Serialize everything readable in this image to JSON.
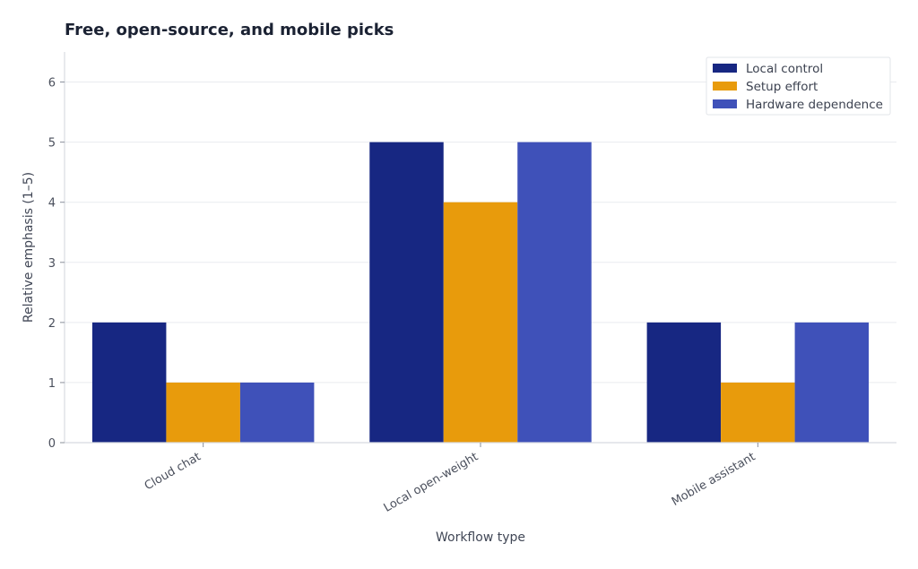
{
  "chart_data": {
    "type": "bar",
    "title": "Free, open-source, and mobile picks",
    "xlabel": "Workflow type",
    "ylabel": "Relative emphasis (1–5)",
    "categories": [
      "Cloud chat",
      "Local open-weight",
      "Mobile assistant"
    ],
    "series": [
      {
        "name": "Local control",
        "values": [
          2,
          5,
          2
        ],
        "color": "#172782"
      },
      {
        "name": "Setup effort",
        "values": [
          1,
          4,
          1
        ],
        "color": "#e89b0c"
      },
      {
        "name": "Hardware dependence",
        "values": [
          1,
          5,
          2
        ],
        "color": "#3f51b9"
      }
    ],
    "ylim": [
      0,
      6.5
    ],
    "yticks": [
      0,
      1,
      2,
      3,
      4,
      5,
      6
    ],
    "grid": true,
    "legend_position": "top-right"
  }
}
